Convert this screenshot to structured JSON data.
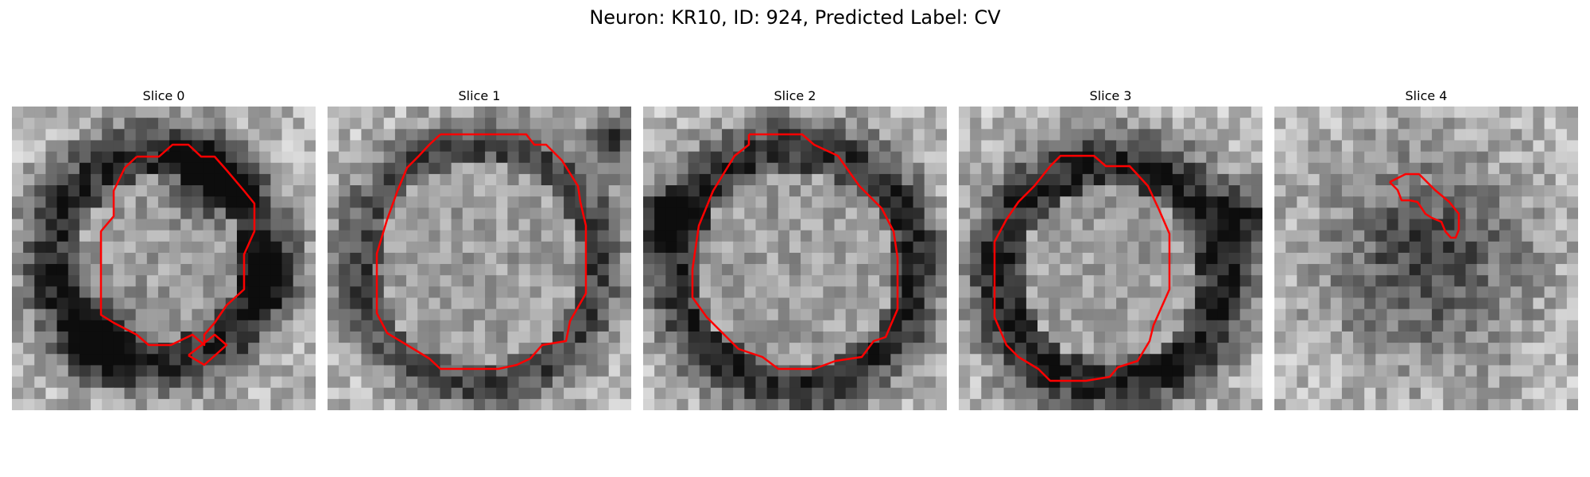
{
  "figure": {
    "title": "Neuron: KR10, ID: 924, Predicted Label: CV"
  },
  "slices": [
    {
      "title": "Slice 0"
    },
    {
      "title": "Slice 1"
    },
    {
      "title": "Slice 2"
    },
    {
      "title": "Slice 3"
    },
    {
      "title": "Slice 4"
    }
  ],
  "colors": {
    "contour": "#ff0000",
    "colormap": "grayscale"
  }
}
